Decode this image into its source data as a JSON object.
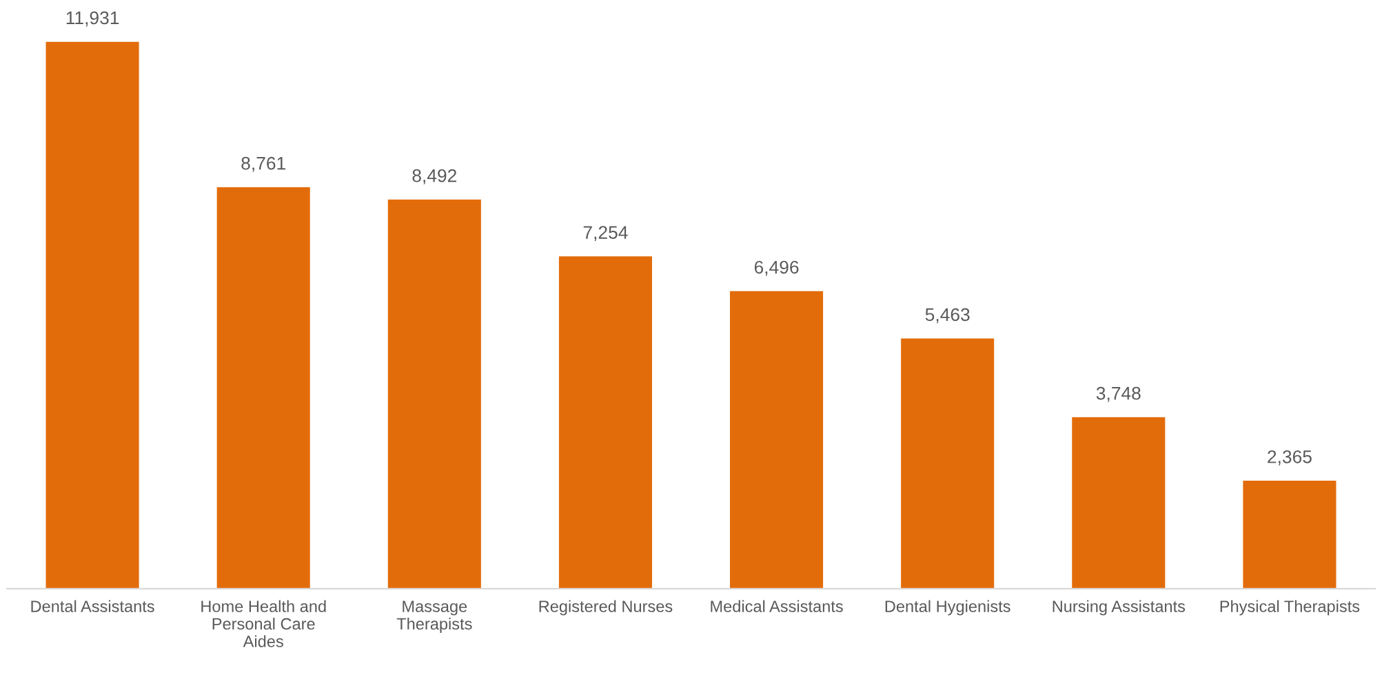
{
  "chart_data": {
    "type": "bar",
    "categories": [
      "Dental Assistants",
      "Home Health and\nPersonal Care\nAides",
      "Massage\nTherapists",
      "Registered Nurses",
      "Medical Assistants",
      "Dental Hygienists",
      "Nursing Assistants",
      "Physical Therapists"
    ],
    "values": [
      11931,
      8761,
      8492,
      7254,
      6496,
      5463,
      3748,
      2365
    ],
    "value_labels": [
      "11,931",
      "8,761",
      "8,492",
      "7,254",
      "6,496",
      "5,463",
      "3,748",
      "2,365"
    ],
    "color": "#e36c0a",
    "grid": false,
    "legend": false
  }
}
